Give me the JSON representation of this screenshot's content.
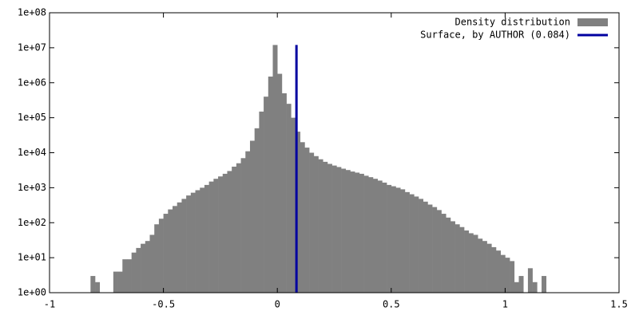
{
  "chart_data": {
    "type": "histogram",
    "bins": [
      -0.82,
      -0.8,
      -0.78,
      -0.76,
      -0.74,
      -0.72,
      -0.7,
      -0.68,
      -0.66,
      -0.64,
      -0.62,
      -0.6,
      -0.58,
      -0.56,
      -0.54,
      -0.52,
      -0.5,
      -0.48,
      -0.46,
      -0.44,
      -0.42,
      -0.4,
      -0.38,
      -0.36,
      -0.34,
      -0.32,
      -0.3,
      -0.28,
      -0.26,
      -0.24,
      -0.22,
      -0.2,
      -0.18,
      -0.16,
      -0.14,
      -0.12,
      -0.1,
      -0.08,
      -0.06,
      -0.04,
      -0.02,
      0,
      0.02,
      0.04,
      0.06,
      0.08,
      0.1,
      0.12,
      0.14,
      0.16,
      0.18,
      0.2,
      0.22,
      0.24,
      0.26,
      0.28,
      0.3,
      0.32,
      0.34,
      0.36,
      0.38,
      0.4,
      0.42,
      0.44,
      0.46,
      0.48,
      0.5,
      0.52,
      0.54,
      0.56,
      0.58,
      0.6,
      0.62,
      0.64,
      0.66,
      0.68,
      0.7,
      0.72,
      0.74,
      0.76,
      0.78,
      0.8,
      0.82,
      0.84,
      0.86,
      0.88,
      0.9,
      0.92,
      0.94,
      0.96,
      0.98,
      1,
      1.02,
      1.04,
      1.06,
      1.08,
      1.1,
      1.12,
      1.14,
      1.16,
      1.18
    ],
    "counts": [
      3,
      2,
      0,
      0,
      0,
      4,
      4,
      9,
      9,
      14,
      19,
      25,
      30,
      45,
      90,
      130,
      180,
      240,
      300,
      380,
      480,
      600,
      720,
      850,
      1000,
      1200,
      1500,
      1800,
      2100,
      2500,
      3000,
      4000,
      5000,
      7000,
      11000,
      22000,
      50000,
      150000,
      400000,
      1500000,
      12000000,
      1800000,
      500000,
      250000,
      100000,
      40000,
      20000,
      14000,
      10000,
      8000,
      6500,
      5500,
      4800,
      4300,
      3900,
      3500,
      3200,
      2900,
      2700,
      2500,
      2200,
      2000,
      1800,
      1600,
      1400,
      1200,
      1100,
      1000,
      900,
      750,
      650,
      560,
      480,
      400,
      330,
      280,
      230,
      180,
      140,
      110,
      90,
      75,
      60,
      50,
      45,
      35,
      30,
      25,
      20,
      16,
      12,
      10,
      8,
      2,
      3,
      0,
      5,
      2,
      0,
      3
    ],
    "name": "Density distribution",
    "color": "#808080",
    "marker": {
      "name": "Surface, by AUTHOR (0.084)",
      "color": "#0000a0",
      "x": 0.084,
      "y": [
        1,
        12000000
      ]
    },
    "xlim": [
      -1,
      1.5
    ],
    "xticks": [
      -1,
      -0.5,
      0,
      0.5,
      1,
      1.5
    ],
    "ylim": [
      1,
      100000000
    ],
    "log_y": true,
    "yticks": [
      {
        "value": 1,
        "label": "1e+00"
      },
      {
        "value": 10,
        "label": "1e+01"
      },
      {
        "value": 100,
        "label": "1e+02"
      },
      {
        "value": 1000,
        "label": "1e+03"
      },
      {
        "value": 10000,
        "label": "1e+04"
      },
      {
        "value": 100000,
        "label": "1e+05"
      },
      {
        "value": 1000000,
        "label": "1e+06"
      },
      {
        "value": 10000000,
        "label": "1e+07"
      },
      {
        "value": 100000000,
        "label": "1e+08"
      }
    ],
    "legend": "top-right"
  }
}
